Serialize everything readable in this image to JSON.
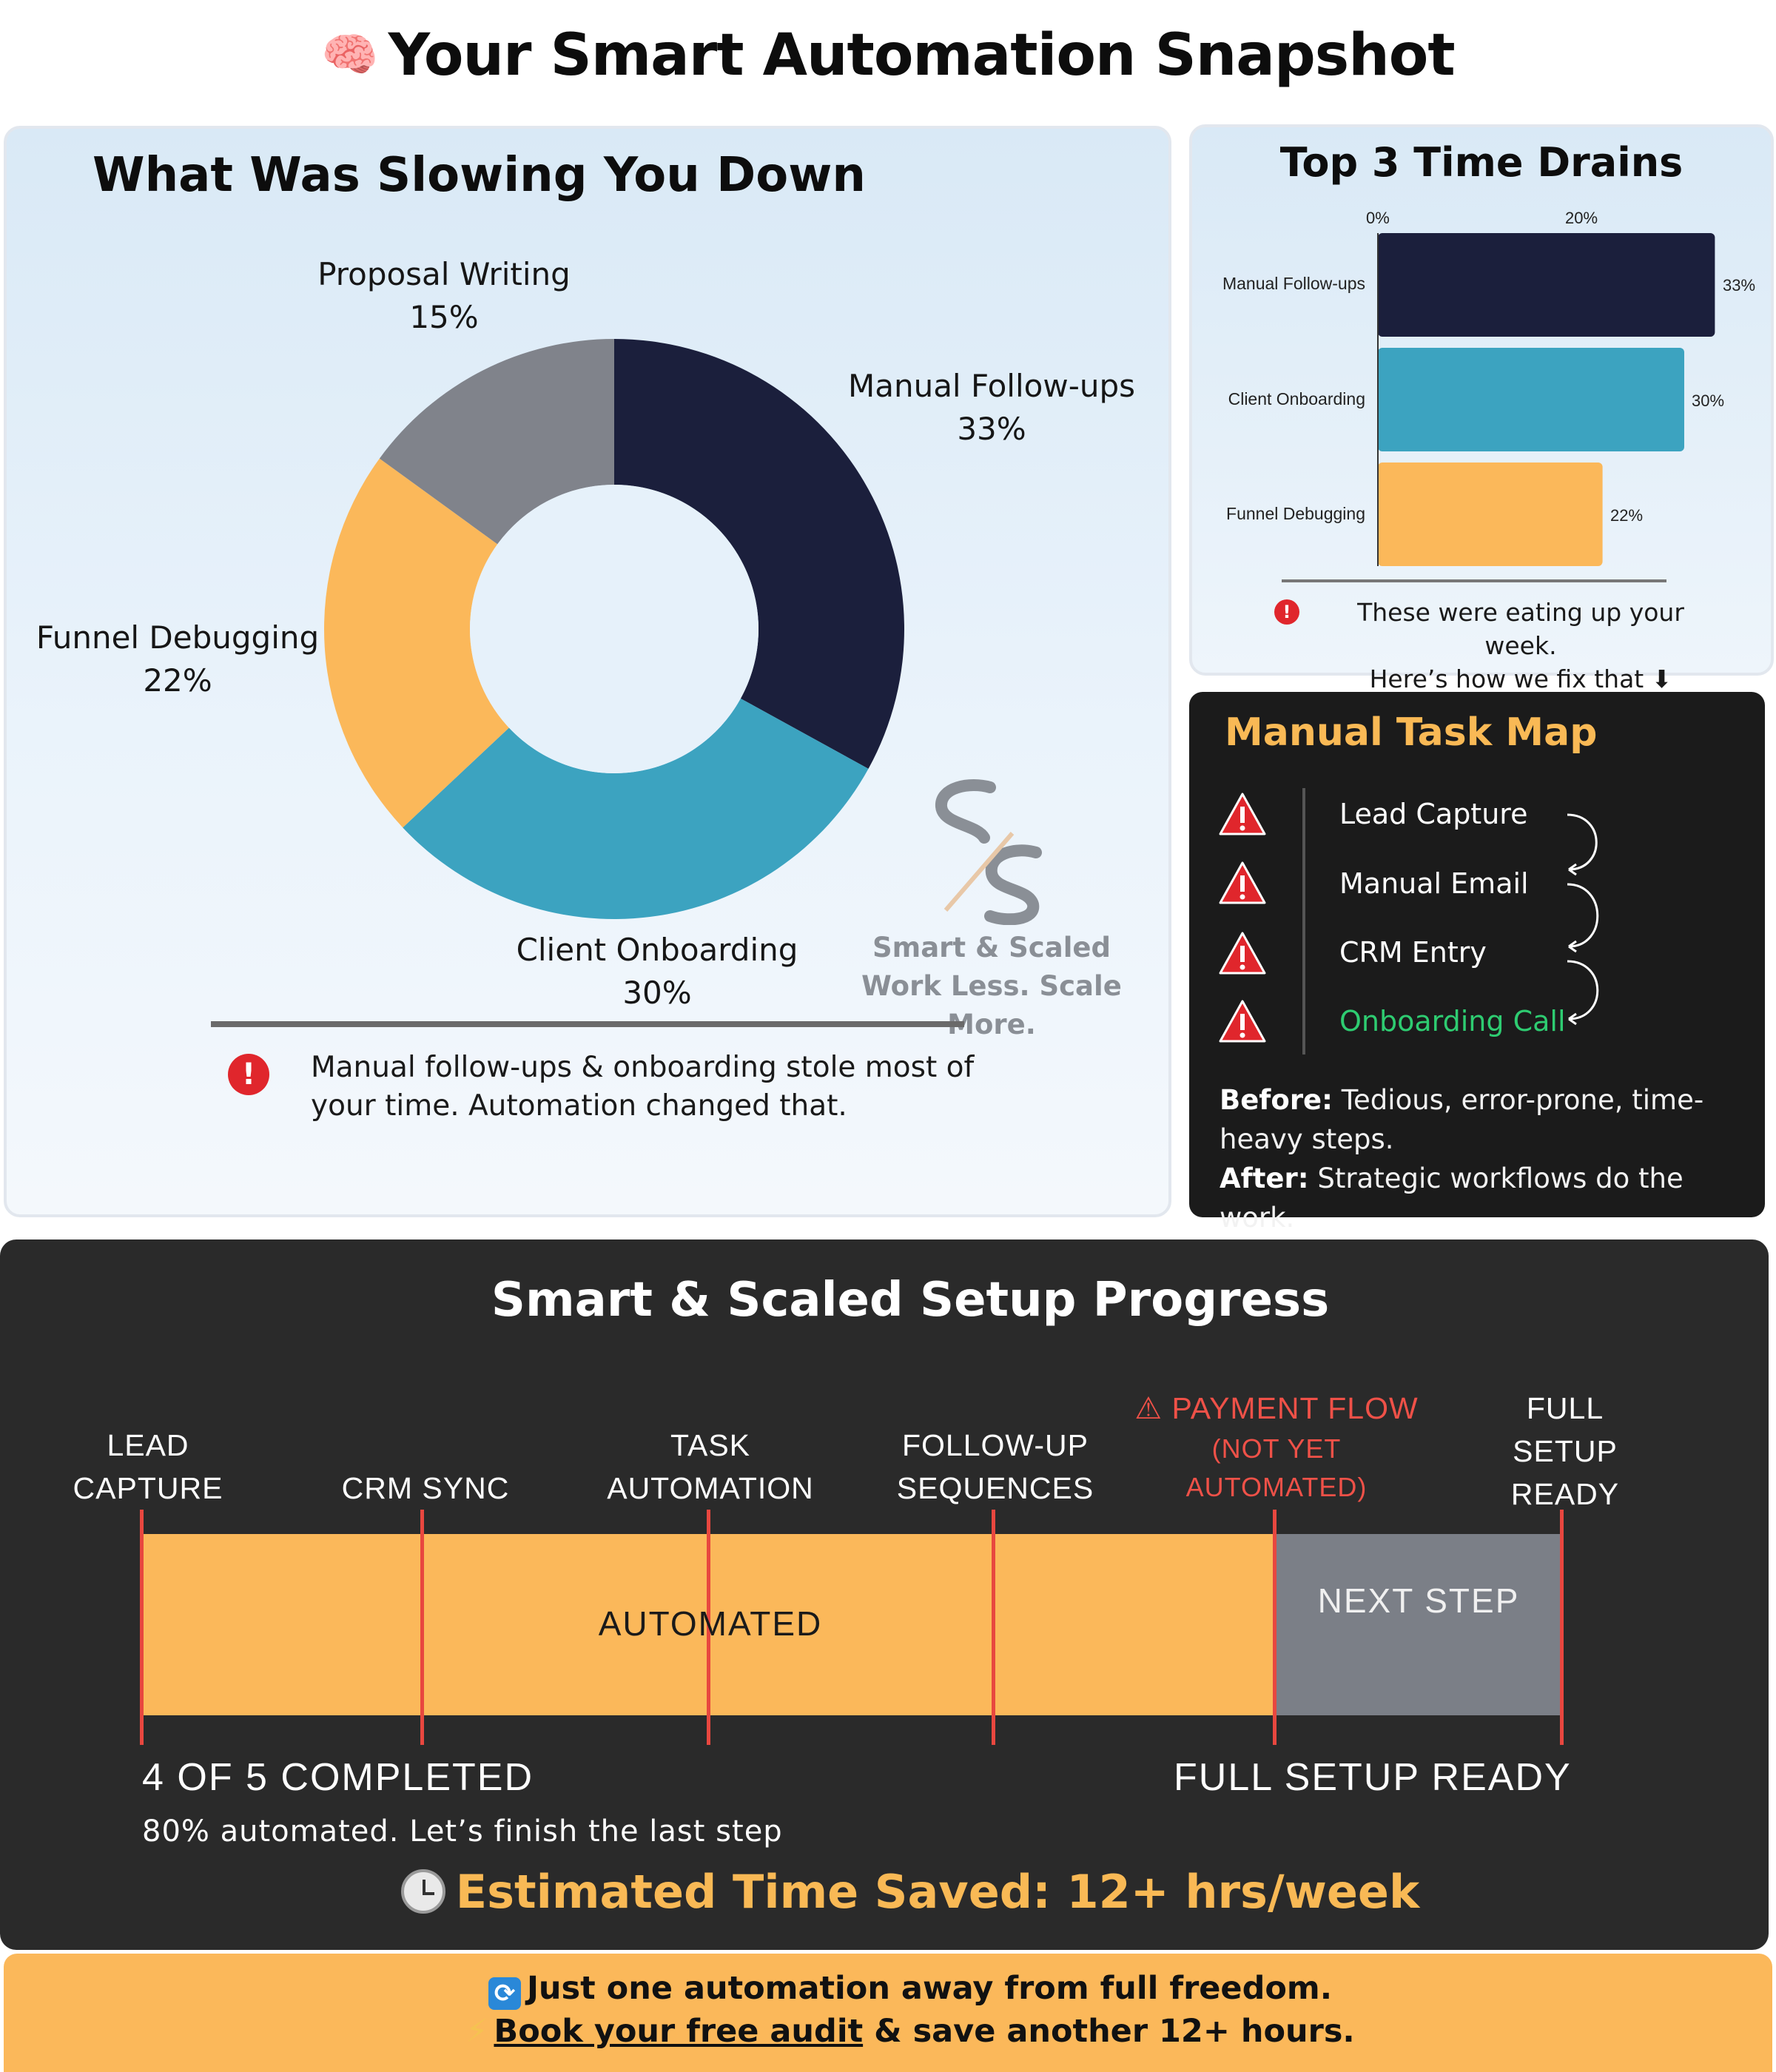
{
  "header": {
    "title": "Your Smart Automation Snapshot",
    "icon": "brain-icon"
  },
  "slowdown": {
    "title": "What Was Slowing You Down",
    "labels": [
      {
        "name": "Manual Follow-ups",
        "pct": "33%"
      },
      {
        "name": "Client Onboarding",
        "pct": "30%"
      },
      {
        "name": "Funnel Debugging",
        "pct": "22%"
      },
      {
        "name": "Proposal Writing",
        "pct": "15%"
      }
    ],
    "note": "Manual follow-ups & onboarding stole most of your time. Automation changed that.",
    "brand": {
      "name": "Smart & Scaled",
      "tagline": "Work Less. Scale More."
    }
  },
  "drains": {
    "title": "Top 3 Time Drains",
    "ticks": [
      "0%",
      "20%"
    ],
    "bars": [
      {
        "label": "Manual Follow-ups",
        "value": "33%"
      },
      {
        "label": "Client Onboarding",
        "value": "30%"
      },
      {
        "label": "Funnel Debugging",
        "value": "22%"
      }
    ],
    "note_line1": "These were eating up your week.",
    "note_line2": "Here’s how we fix that ⬇"
  },
  "taskmap": {
    "title": "Manual Task Map",
    "items": [
      "Lead Capture",
      "Manual Email",
      "CRM Entry",
      "Onboarding Call"
    ],
    "before_label": "Before:",
    "before_text": "Tedious, error-prone, time-heavy steps.",
    "after_label": "After:",
    "after_text": "Strategic workflows do the work."
  },
  "progress": {
    "title": "Smart & Scaled Setup Progress",
    "milestones": {
      "lead": "LEAD CAPTURE",
      "crm": "CRM SYNC",
      "task": "TASK AUTOMATION",
      "follow": "FOLLOW-UP SEQUENCES",
      "payment": "⚠ PAYMENT FLOW",
      "payment_sub": "(NOT YET AUTOMATED)",
      "full": "FULL SETUP READY"
    },
    "automated_label": "AUTOMATED",
    "next_label": "NEXT STEP",
    "completed": "4 OF 5 COMPLETED",
    "ready": "FULL SETUP READY",
    "automated_note": "80% automated. Let’s finish the last step",
    "time_saved": "Estimated Time Saved: 12+ hrs/week",
    "completion_fraction": 0.8
  },
  "cta": {
    "line1": "Just one automation away from full freedom.",
    "link": "Book your free audit",
    "line2_rest": " & save another 12+ hours."
  },
  "chart_data": [
    {
      "type": "pie",
      "title": "What Was Slowing You Down",
      "categories": [
        "Manual Follow-ups",
        "Client Onboarding",
        "Funnel Debugging",
        "Proposal Writing"
      ],
      "values": [
        33,
        30,
        22,
        15
      ],
      "colors": [
        "#1b1f3c",
        "#3ca3c0",
        "#fbb85a",
        "#80838b"
      ]
    },
    {
      "type": "bar",
      "title": "Top 3 Time Drains",
      "categories": [
        "Manual Follow-ups",
        "Client Onboarding",
        "Funnel Debugging"
      ],
      "values": [
        33,
        30,
        22
      ],
      "colors": [
        "#1b1f3c",
        "#3ca3c0",
        "#fbb85a"
      ]
    }
  ]
}
